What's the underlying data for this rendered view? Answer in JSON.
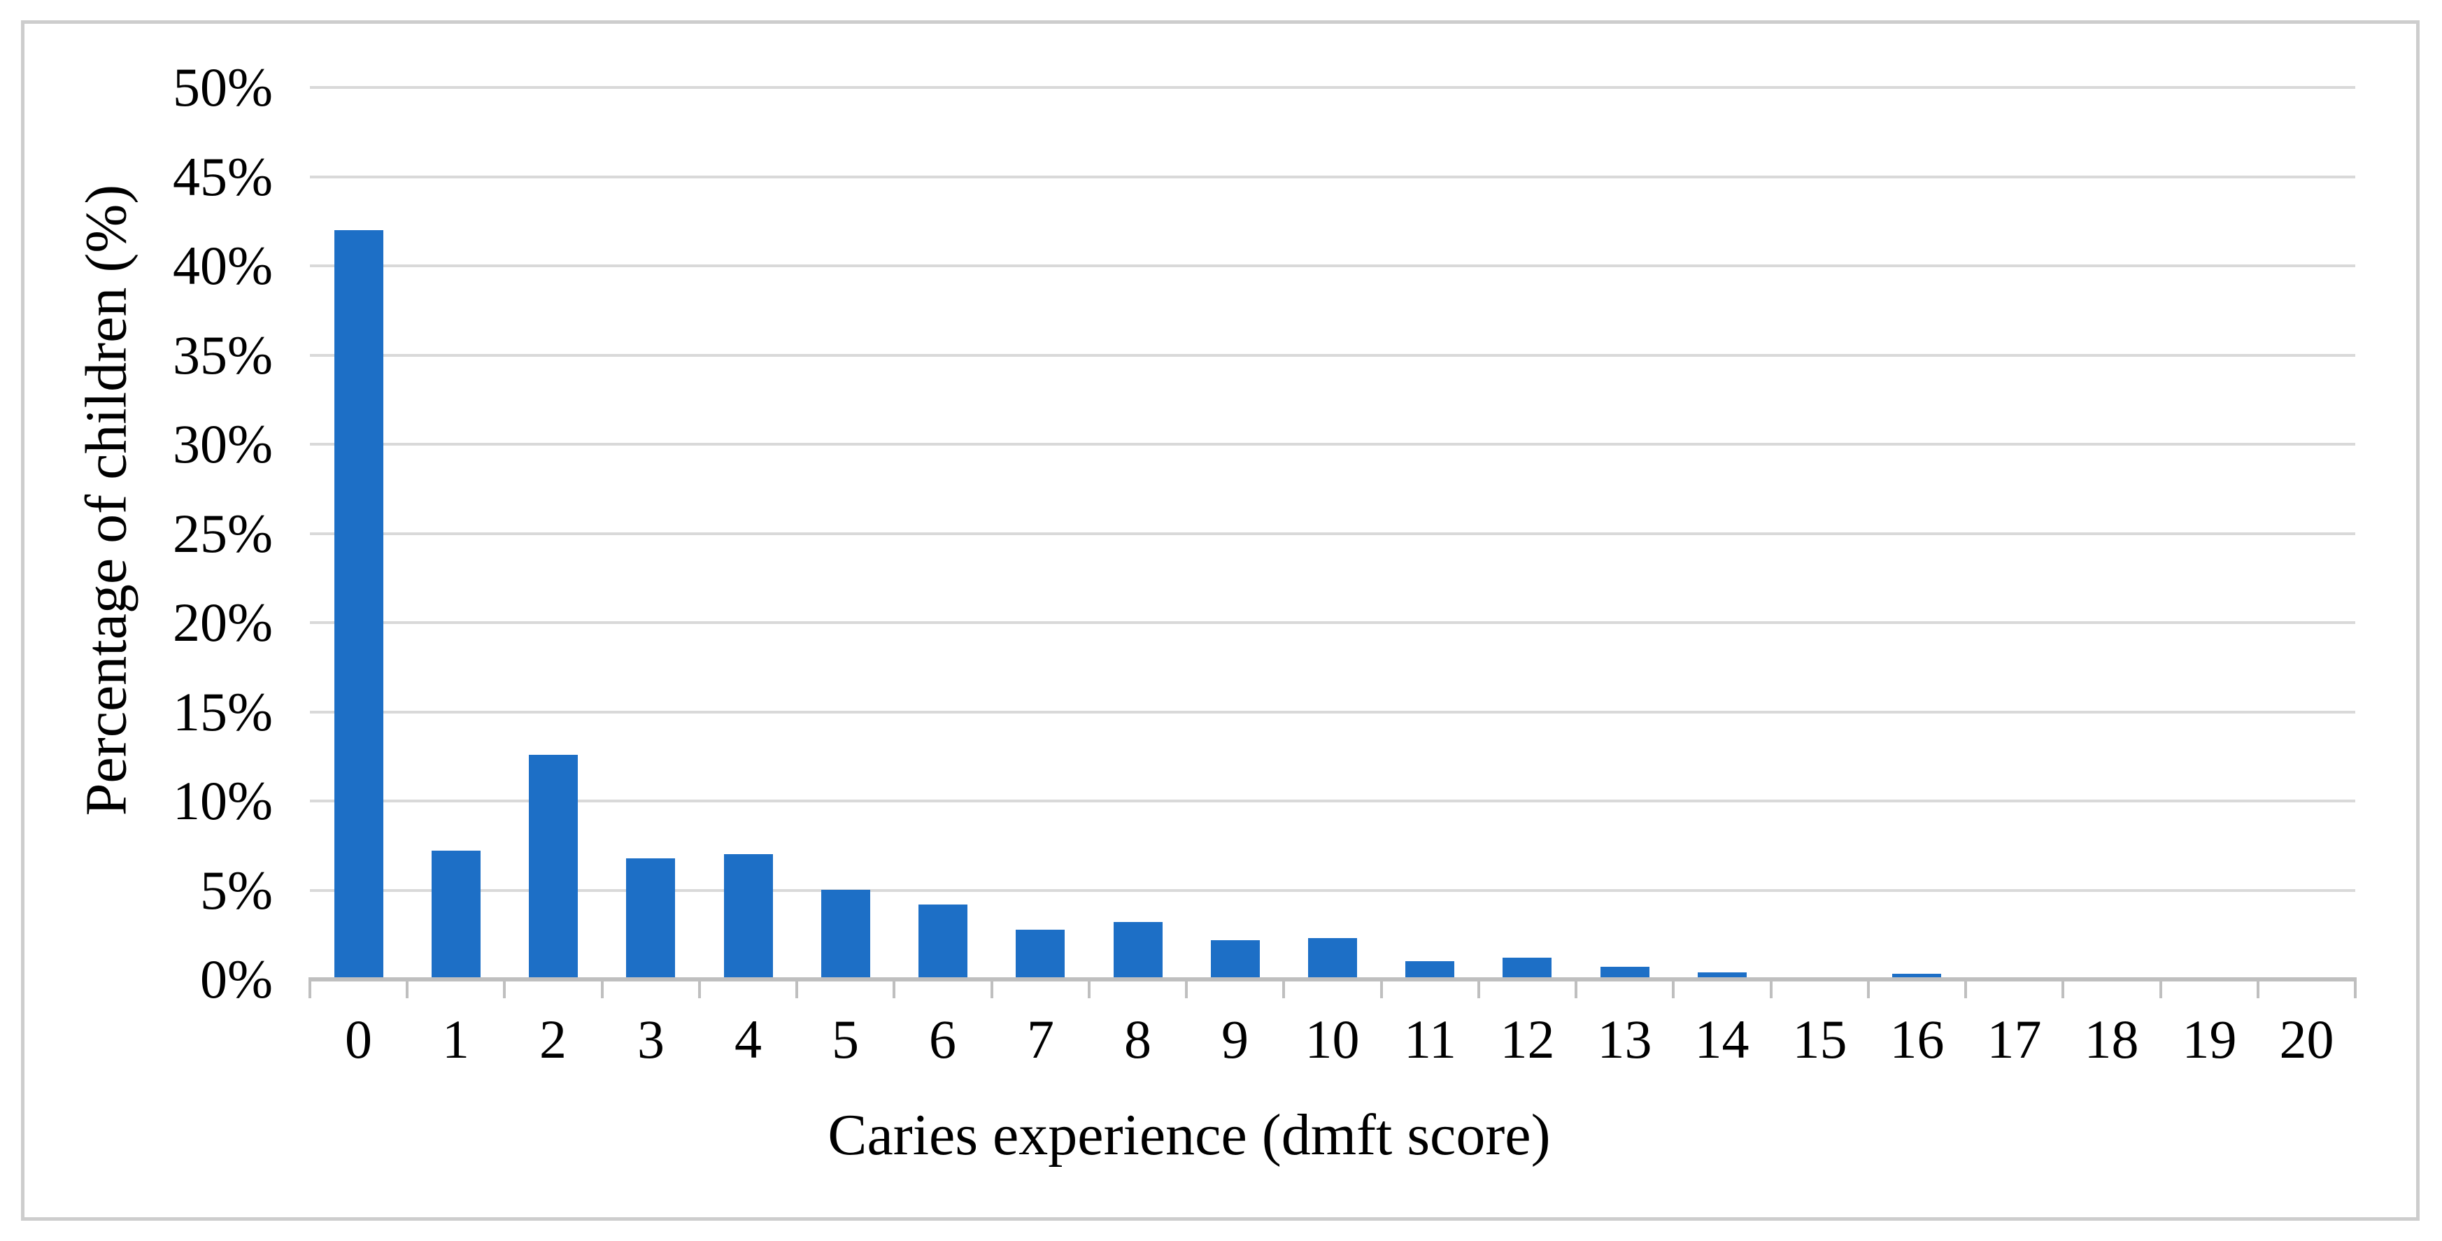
{
  "figure": {
    "background_color": "#ffffff",
    "frame_border_color": "#cdcdcd"
  },
  "chart_data": {
    "type": "bar",
    "title": "",
    "xlabel": "Caries experience (dmft score)",
    "ylabel": "Percentage of children (%)",
    "categories": [
      "0",
      "1",
      "2",
      "3",
      "4",
      "5",
      "6",
      "7",
      "8",
      "9",
      "10",
      "11",
      "12",
      "13",
      "14",
      "15",
      "16",
      "17",
      "18",
      "19",
      "20"
    ],
    "values": [
      42.0,
      7.2,
      12.6,
      6.8,
      7.0,
      5.0,
      4.2,
      2.8,
      3.2,
      2.2,
      2.3,
      1.0,
      1.2,
      0.7,
      0.4,
      0.0,
      0.3,
      0.0,
      0.0,
      0.0,
      0.0
    ],
    "y_ticks": [
      "0%",
      "5%",
      "10%",
      "15%",
      "20%",
      "25%",
      "30%",
      "35%",
      "40%",
      "45%",
      "50%"
    ],
    "ylim": [
      0,
      50
    ],
    "y_tick_step": 5,
    "grid": true,
    "legend": false,
    "bar_color": "#1d6fc6",
    "gridline_color": "#d9d9d9",
    "axis_color": "#bfbfbf",
    "text_color": "#000000"
  }
}
